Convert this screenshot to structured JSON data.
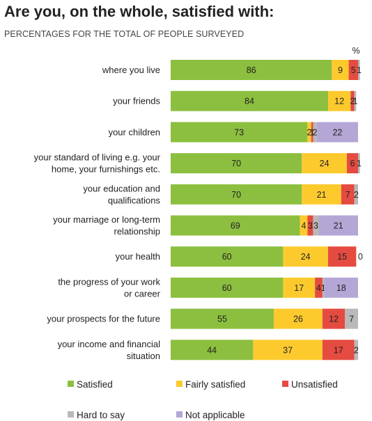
{
  "title": "Are you, on the whole, satisfied with:",
  "subtitle": "PERCENTAGES FOR THE TOTAL OF PEOPLE SURVEYED",
  "unit_label": "%",
  "colors": {
    "satisfied": "#8cbf3f",
    "fairly_satisfied": "#fdca2e",
    "unsatisfied": "#e54b40",
    "hard_to_say": "#b9b9b9",
    "not_applicable": "#b4a7d6"
  },
  "legend": [
    {
      "label": "Satisfied",
      "color": "#8cbf3f"
    },
    {
      "label": "Fairly satisfied",
      "color": "#fdca2e"
    },
    {
      "label": "Unsatisfied",
      "color": "#e54b40"
    },
    {
      "label": "Hard to say",
      "color": "#b9b9b9"
    },
    {
      "label": "Not applicable",
      "color": "#b4a7d6"
    }
  ],
  "chart_data": {
    "type": "bar",
    "orientation": "horizontal",
    "stacked": true,
    "unit": "%",
    "legend_position": "bottom",
    "grid": false,
    "xlim": [
      0,
      100
    ],
    "categories": [
      [
        "where you live"
      ],
      [
        "your friends"
      ],
      [
        "your children"
      ],
      [
        "your standard of living e.g. your",
        "home, your furnishings etc."
      ],
      [
        "your education and",
        "qualifications"
      ],
      [
        "your marriage or long-term",
        "relationship"
      ],
      [
        "your health"
      ],
      [
        "the progress of your work",
        "or career"
      ],
      [
        "your prospects for the future"
      ],
      [
        "your income and financial",
        "situation"
      ]
    ],
    "series": [
      {
        "name": "Satisfied",
        "values": [
          86,
          84,
          73,
          70,
          70,
          69,
          60,
          60,
          55,
          44
        ]
      },
      {
        "name": "Fairly satisfied",
        "values": [
          9,
          12,
          2,
          24,
          21,
          4,
          24,
          17,
          26,
          37
        ]
      },
      {
        "name": "Unsatisfied",
        "values": [
          5,
          2,
          1,
          6,
          7,
          3,
          15,
          4,
          12,
          17
        ]
      },
      {
        "name": "Hard to say",
        "values": [
          1,
          1,
          2,
          1,
          2,
          3,
          0,
          1,
          7,
          2
        ]
      },
      {
        "name": "Not applicable",
        "values": [
          0,
          0,
          22,
          0,
          0,
          21,
          0,
          18,
          0,
          0
        ]
      }
    ]
  }
}
